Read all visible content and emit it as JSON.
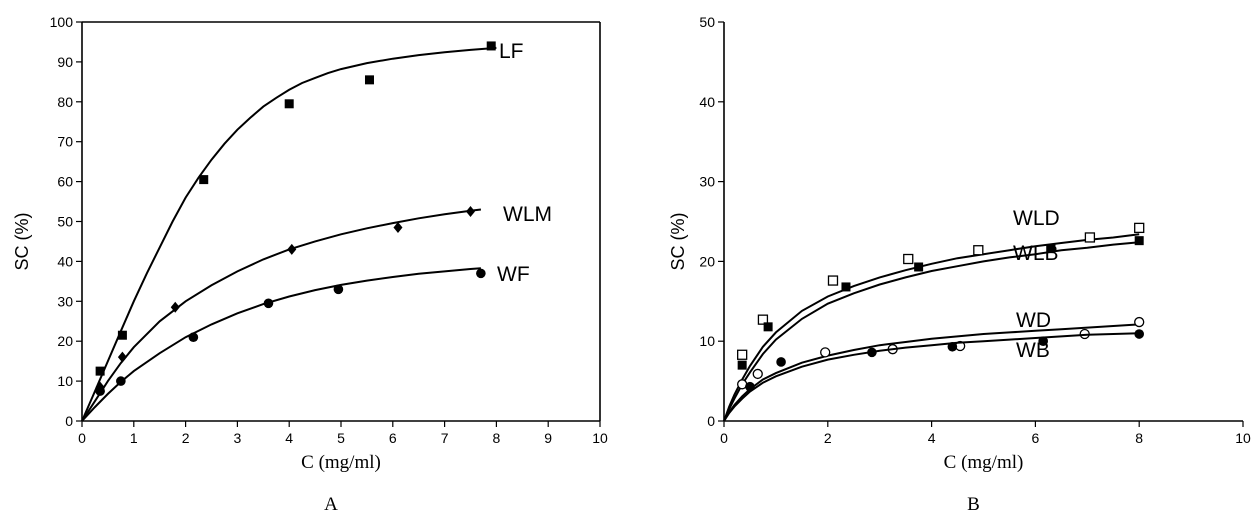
{
  "chart_data": [
    {
      "type": "scatter",
      "panel_label": "A",
      "xlabel": "C (mg/ml)",
      "ylabel": "SC (%)",
      "xlim": [
        0,
        10
      ],
      "ylim": [
        0,
        100
      ],
      "xticks": [
        0,
        1,
        2,
        3,
        4,
        5,
        6,
        7,
        8,
        9,
        10
      ],
      "yticks": [
        0,
        10,
        20,
        30,
        40,
        50,
        60,
        70,
        80,
        90,
        100
      ],
      "series": [
        {
          "name": "LF",
          "marker": "square-filled",
          "x": [
            0.35,
            0.78,
            2.35,
            4.0,
            5.55,
            7.9
          ],
          "y": [
            12.5,
            21.5,
            60.5,
            79.5,
            85.5,
            94.0
          ],
          "fit_x": [
            0,
            0.25,
            0.5,
            0.75,
            1.0,
            1.25,
            1.5,
            1.75,
            2.0,
            2.25,
            2.5,
            2.75,
            3.0,
            3.25,
            3.5,
            3.75,
            4.0,
            4.25,
            4.5,
            4.75,
            5.0,
            5.5,
            6.0,
            6.5,
            7.0,
            7.5,
            8.0
          ],
          "fit_y": [
            0,
            7.5,
            15,
            22.5,
            30,
            37,
            43.5,
            50,
            56,
            61,
            65.5,
            69.5,
            73,
            76,
            78.8,
            81,
            83,
            84.7,
            86,
            87.2,
            88.2,
            89.7,
            90.8,
            91.7,
            92.4,
            93,
            93.5
          ]
        },
        {
          "name": "WLM",
          "marker": "diamond-filled",
          "x": [
            0.35,
            0.78,
            1.8,
            4.05,
            6.1,
            7.5
          ],
          "y": [
            8.5,
            16.0,
            28.5,
            43.0,
            48.5,
            52.5
          ],
          "fit_x": [
            0,
            0.25,
            0.5,
            0.75,
            1.0,
            1.5,
            2.0,
            2.5,
            3.0,
            3.5,
            4.0,
            4.5,
            5.0,
            5.5,
            6.0,
            6.5,
            7.0,
            7.5,
            7.7
          ],
          "fit_y": [
            0,
            5.0,
            10.0,
            14.5,
            18.5,
            25,
            30,
            34,
            37.5,
            40.5,
            43,
            45,
            46.8,
            48.3,
            49.6,
            50.8,
            51.8,
            52.7,
            53.0
          ]
        },
        {
          "name": "WF",
          "marker": "circle-filled",
          "x": [
            0.35,
            0.75,
            2.15,
            3.6,
            4.95,
            7.7
          ],
          "y": [
            7.5,
            10.0,
            21.0,
            29.5,
            33.0,
            37.0
          ],
          "fit_x": [
            0,
            0.25,
            0.5,
            0.75,
            1.0,
            1.5,
            2.0,
            2.5,
            3.0,
            3.5,
            4.0,
            4.5,
            5.0,
            5.5,
            6.0,
            6.5,
            7.0,
            7.5,
            7.7
          ],
          "fit_y": [
            0,
            3.5,
            6.8,
            9.8,
            12.5,
            17,
            21,
            24.2,
            27,
            29.3,
            31.2,
            32.8,
            34.1,
            35.2,
            36.1,
            36.9,
            37.5,
            38.1,
            38.3
          ]
        }
      ]
    },
    {
      "type": "scatter",
      "panel_label": "B",
      "xlabel": "C (mg/ml)",
      "ylabel": "SC (%)",
      "xlim": [
        0,
        10
      ],
      "ylim": [
        0,
        50
      ],
      "xticks": [
        0,
        2,
        4,
        6,
        8,
        10
      ],
      "yticks": [
        0,
        10,
        20,
        30,
        40,
        50
      ],
      "series": [
        {
          "name": "WLD",
          "marker": "square-open",
          "x": [
            0.35,
            0.75,
            2.1,
            3.55,
            4.9,
            7.05,
            8.0
          ],
          "y": [
            8.3,
            12.7,
            17.6,
            20.3,
            21.4,
            23.0,
            24.2
          ],
          "fit_x": [
            0,
            0.1,
            0.2,
            0.35,
            0.5,
            0.75,
            1.0,
            1.5,
            2.0,
            2.5,
            3.0,
            3.5,
            4.0,
            4.5,
            5.0,
            5.5,
            6.0,
            6.5,
            7.0,
            7.5,
            8.0
          ],
          "fit_y": [
            0,
            1.8,
            3.3,
            5.2,
            6.9,
            9.3,
            11.1,
            13.8,
            15.6,
            16.9,
            18.0,
            18.9,
            19.7,
            20.4,
            20.9,
            21.4,
            21.9,
            22.3,
            22.7,
            23.0,
            23.4
          ]
        },
        {
          "name": "WLB",
          "marker": "square-filled",
          "x": [
            0.35,
            0.85,
            2.35,
            3.75,
            6.3,
            8.0
          ],
          "y": [
            7.0,
            11.8,
            16.8,
            19.3,
            21.6,
            22.6
          ],
          "fit_x": [
            0,
            0.1,
            0.2,
            0.35,
            0.5,
            0.75,
            1.0,
            1.5,
            2.0,
            2.5,
            3.0,
            3.5,
            4.0,
            4.5,
            5.0,
            5.5,
            6.0,
            6.5,
            7.0,
            7.5,
            8.0
          ],
          "fit_y": [
            0,
            1.5,
            2.8,
            4.6,
            6.1,
            8.4,
            10.2,
            12.8,
            14.7,
            16.0,
            17.1,
            18.0,
            18.8,
            19.4,
            20.0,
            20.5,
            20.9,
            21.4,
            21.7,
            22.1,
            22.4
          ]
        },
        {
          "name": "WD",
          "marker": "circle-open",
          "x": [
            0.35,
            0.65,
            1.95,
            3.25,
            4.55,
            6.95,
            8.0
          ],
          "y": [
            4.6,
            5.9,
            8.6,
            9.0,
            9.4,
            10.9,
            12.4
          ],
          "fit_x": [
            0,
            0.1,
            0.2,
            0.35,
            0.5,
            0.75,
            1.0,
            1.5,
            2.0,
            2.5,
            3.0,
            3.5,
            4.0,
            4.5,
            5.0,
            5.5,
            6.0,
            6.5,
            7.0,
            7.5,
            8.0
          ],
          "fit_y": [
            0,
            1.1,
            2.0,
            3.1,
            4.0,
            5.2,
            6.0,
            7.3,
            8.2,
            8.9,
            9.5,
            9.9,
            10.3,
            10.6,
            10.9,
            11.1,
            11.3,
            11.5,
            11.7,
            11.9,
            12.1
          ]
        },
        {
          "name": "WB",
          "marker": "circle-filled",
          "x": [
            0.5,
            1.1,
            2.85,
            4.4,
            6.15,
            8.0
          ],
          "y": [
            4.3,
            7.4,
            8.6,
            9.3,
            10.0,
            10.9
          ],
          "fit_x": [
            0,
            0.1,
            0.2,
            0.35,
            0.5,
            0.75,
            1.0,
            1.5,
            2.0,
            2.5,
            3.0,
            3.5,
            4.0,
            4.5,
            5.0,
            5.5,
            6.0,
            6.5,
            7.0,
            7.5,
            8.0
          ],
          "fit_y": [
            0,
            1.0,
            1.8,
            2.8,
            3.7,
            4.8,
            5.6,
            6.8,
            7.7,
            8.3,
            8.8,
            9.2,
            9.5,
            9.8,
            10.0,
            10.2,
            10.4,
            10.6,
            10.8,
            10.9,
            11.0
          ]
        }
      ]
    }
  ]
}
